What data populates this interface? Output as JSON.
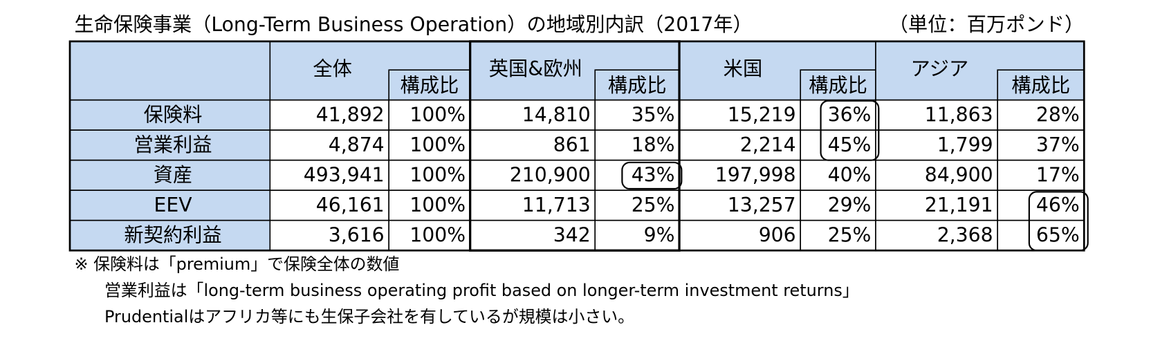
{
  "header": {
    "title": "生命保険事業（Long-Term Business Operation）の地域別内訳（2017年）",
    "unit": "（単位：百万ポンド）"
  },
  "table": {
    "groups": [
      "全体",
      "英国&欧州",
      "米国",
      "アジア"
    ],
    "share_labels": [
      "構成比",
      "構成比",
      "構成比",
      "構成比"
    ],
    "rows": [
      {
        "label": "保険料",
        "cells": [
          "41,892",
          "100%",
          "14,810",
          "35%",
          "15,219",
          "36%",
          "11,863",
          "28%"
        ]
      },
      {
        "label": "営業利益",
        "cells": [
          "4,874",
          "100%",
          "861",
          "18%",
          "2,214",
          "45%",
          "1,799",
          "37%"
        ]
      },
      {
        "label": "資産",
        "cells": [
          "493,941",
          "100%",
          "210,900",
          "43%",
          "197,998",
          "40%",
          "84,900",
          "17%"
        ]
      },
      {
        "label": "EEV",
        "cells": [
          "46,161",
          "100%",
          "11,713",
          "25%",
          "13,257",
          "29%",
          "21,191",
          "46%"
        ]
      },
      {
        "label": "新契約利益",
        "cells": [
          "3,616",
          "100%",
          "342",
          "9%",
          "906",
          "25%",
          "2,368",
          "65%"
        ]
      }
    ]
  },
  "notes": [
    "※ 保険料は「premium」で保険全体の数値",
    "営業利益は「long-term business operating profit based on longer-term investment returns」",
    "Prudentialはアフリカ等にも生保子会社を有しているが規模は小さい。"
  ]
}
